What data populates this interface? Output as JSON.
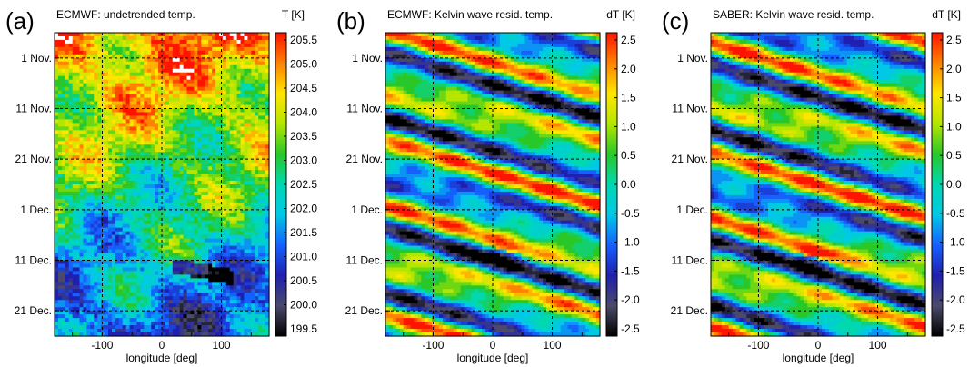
{
  "chart_data": [
    {
      "type": "heatmap",
      "panel_label": "(a)",
      "title": "ECMWF: undetrended temp.",
      "colorbar_label": "T [K]",
      "colorbar_ticks": [
        "205.5",
        "205.0",
        "204.5",
        "204.0",
        "203.5",
        "203.0",
        "202.5",
        "202.0",
        "201.5",
        "201.0",
        "200.5",
        "200.0",
        "199.5"
      ],
      "zlim": [
        199.5,
        205.5
      ],
      "xlabel": "longitude [deg]",
      "x_ticks": [
        "-100",
        "0",
        "100"
      ],
      "x_tick_values": [
        -100,
        0,
        100
      ],
      "xlim": [
        -180,
        180
      ],
      "y_ticks": [
        "1 Nov.",
        "11 Nov.",
        "21 Nov.",
        "1 Dec.",
        "11 Dec.",
        "21 Dec."
      ],
      "y_tick_days": [
        0,
        10,
        20,
        30,
        40,
        50
      ],
      "ylim_days": [
        -5,
        55
      ],
      "pattern": "noisy"
    },
    {
      "type": "heatmap",
      "panel_label": "(b)",
      "title": "ECMWF: Kelvin wave resid. temp.",
      "colorbar_label": "dT [K]",
      "colorbar_ticks": [
        "2.5",
        "2.0",
        "1.5",
        "1.0",
        "0.5",
        "0.0",
        "-0.5",
        "-1.0",
        "-1.5",
        "-2.0",
        "-2.5"
      ],
      "zlim": [
        -2.5,
        2.5
      ],
      "xlabel": "longitude [deg]",
      "x_ticks": [
        "-100",
        "0",
        "100"
      ],
      "x_tick_values": [
        -100,
        0,
        100
      ],
      "xlim": [
        -180,
        180
      ],
      "y_ticks": [
        "1 Nov.",
        "11 Nov.",
        "21 Nov.",
        "1 Dec.",
        "11 Dec.",
        "21 Dec."
      ],
      "y_tick_days": [
        0,
        10,
        20,
        30,
        40,
        50
      ],
      "ylim_days": [
        -5,
        55
      ],
      "pattern": "waves"
    },
    {
      "type": "heatmap",
      "panel_label": "(c)",
      "title": "SABER: Kelvin wave resid. temp.",
      "colorbar_label": "dT [K]",
      "colorbar_ticks": [
        "2.5",
        "2.0",
        "1.5",
        "1.0",
        "0.5",
        "0.0",
        "-0.5",
        "-1.0",
        "-1.5",
        "-2.0",
        "-2.5"
      ],
      "zlim": [
        -2.5,
        2.5
      ],
      "xlabel": "longitude [deg]",
      "x_ticks": [
        "-100",
        "0",
        "100"
      ],
      "x_tick_values": [
        -100,
        0,
        100
      ],
      "xlim": [
        -180,
        180
      ],
      "y_ticks": [
        "1 Nov.",
        "11 Nov.",
        "21 Nov.",
        "1 Dec.",
        "11 Dec.",
        "21 Dec."
      ],
      "y_tick_days": [
        0,
        10,
        20,
        30,
        40,
        50
      ],
      "ylim_days": [
        -5,
        55
      ],
      "pattern": "waves"
    }
  ]
}
